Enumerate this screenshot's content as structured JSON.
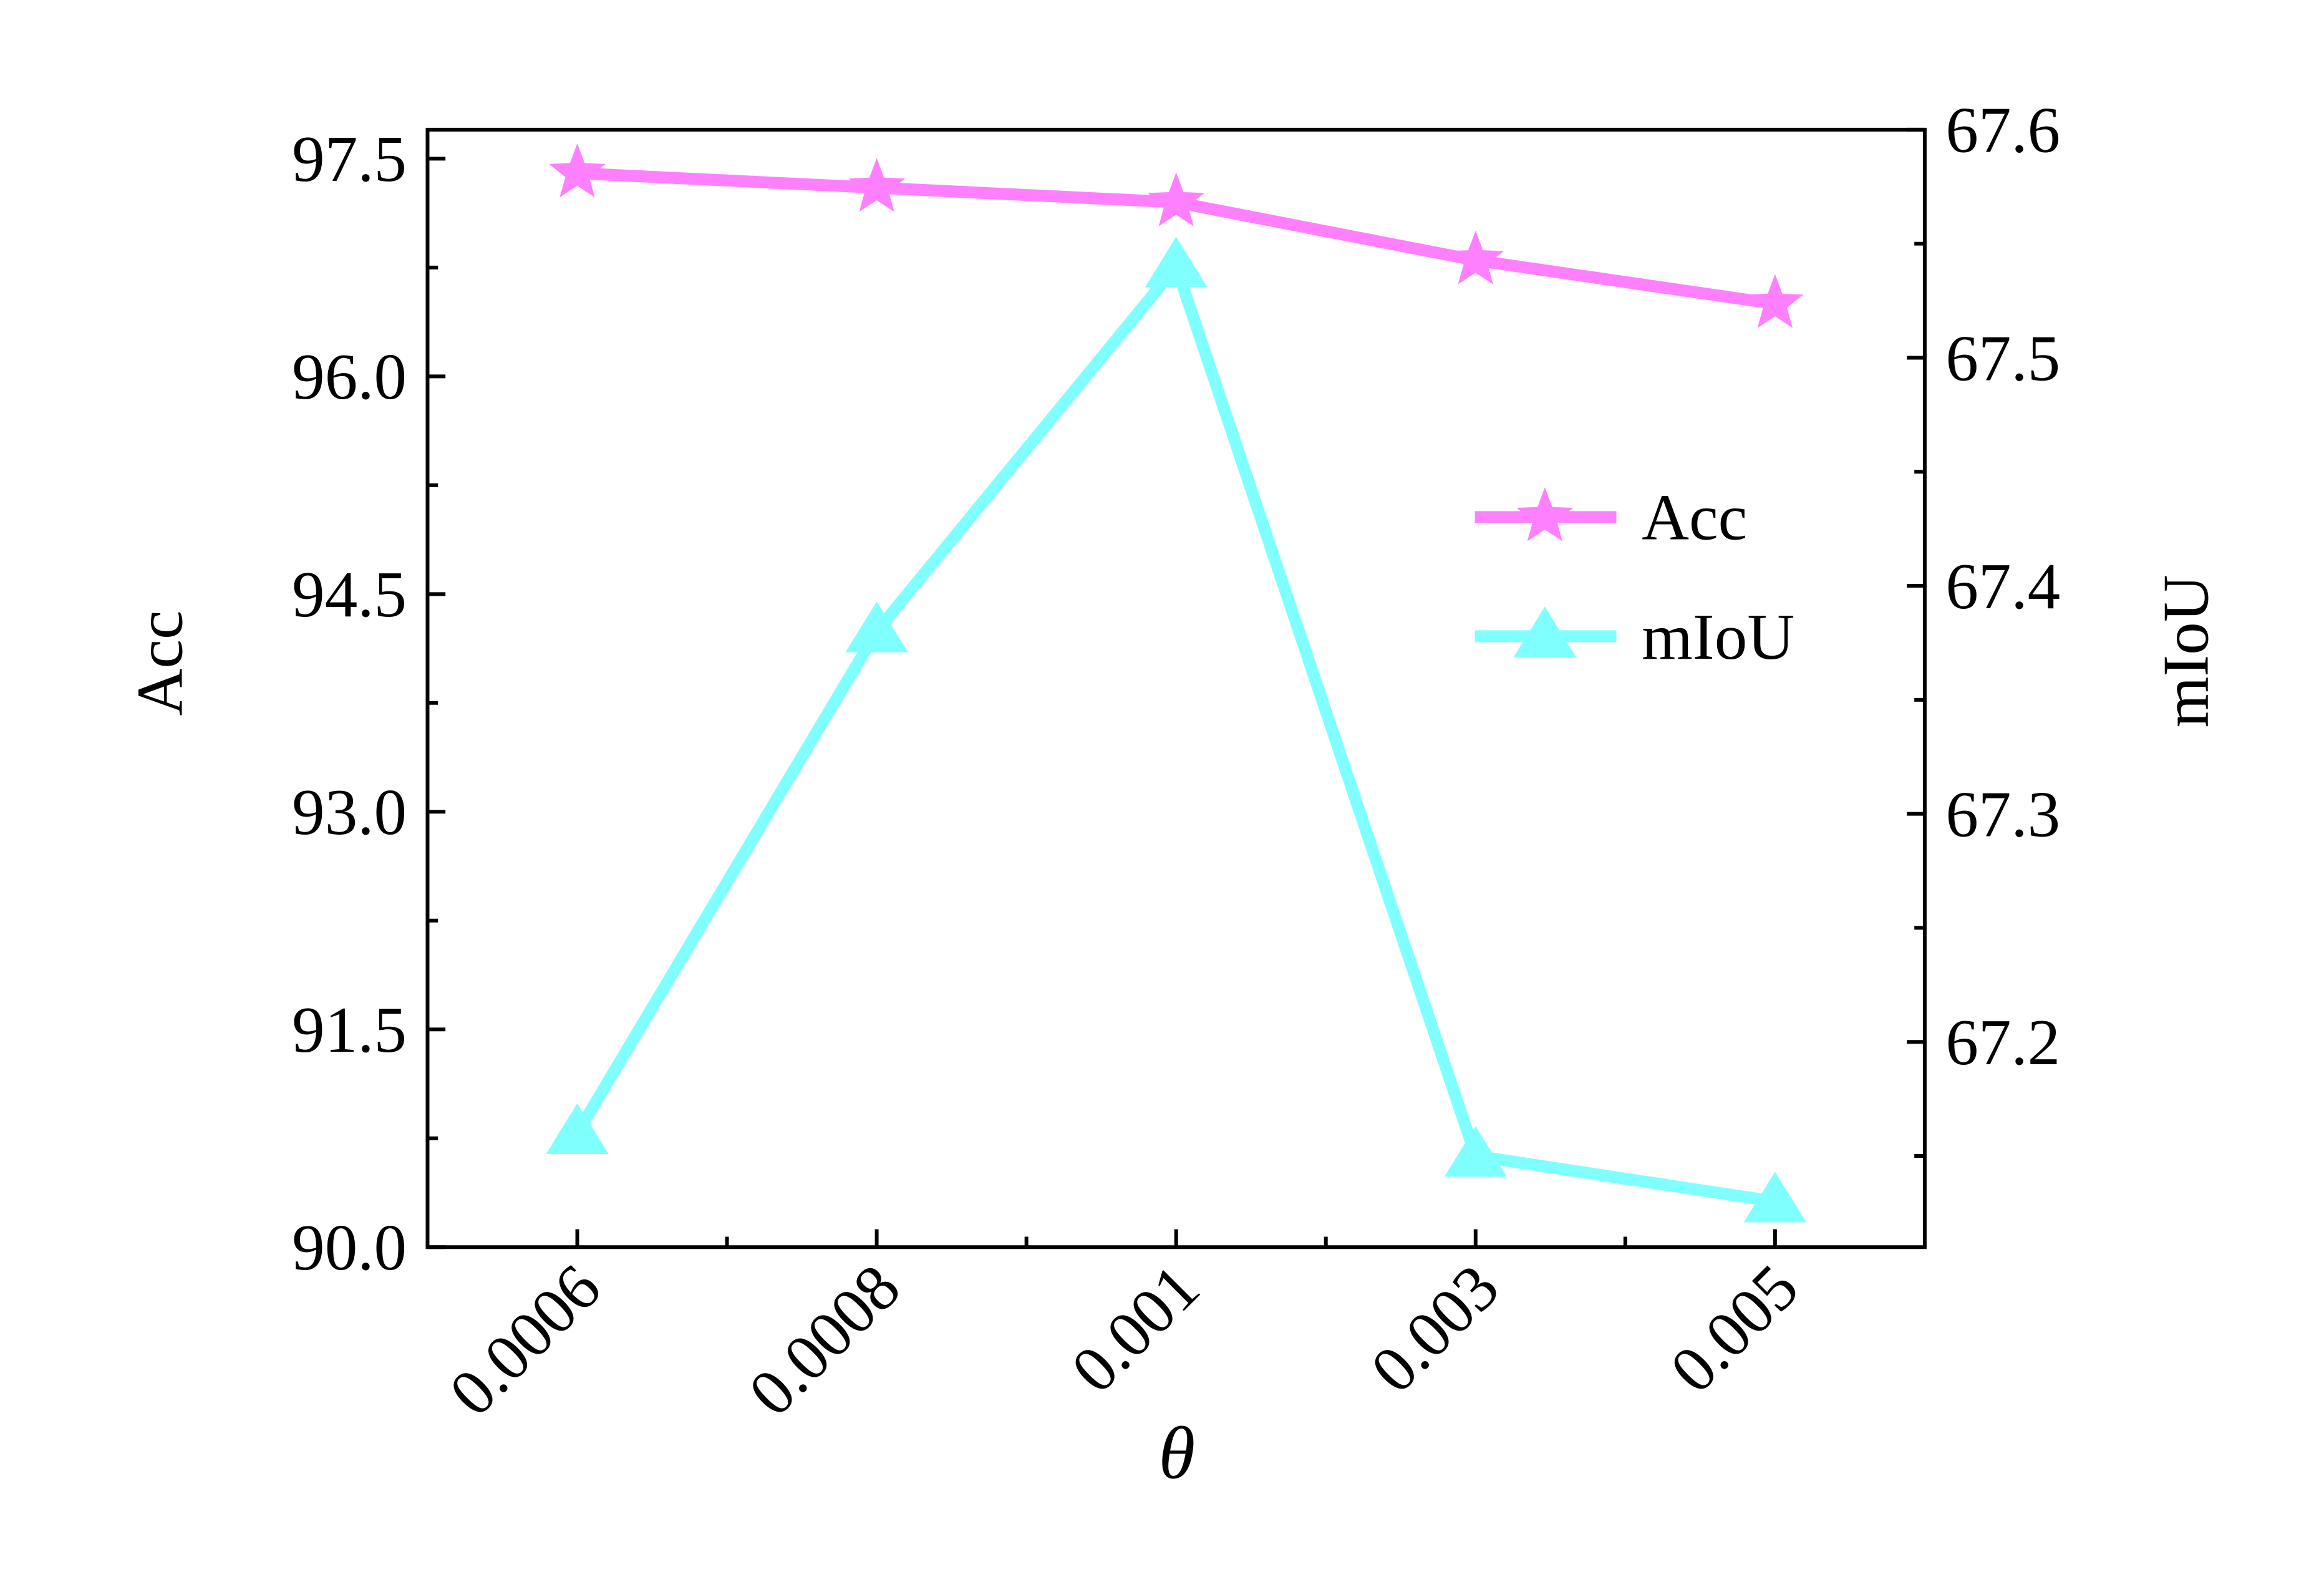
{
  "chart_data": {
    "type": "line",
    "x_label": "θ",
    "y_label": "Acc",
    "y2_label": "mIoU",
    "categories": [
      "0.0006",
      "0.0008",
      "0.001",
      "0.003",
      "0.005"
    ],
    "series": [
      {
        "name": "Acc",
        "color": "#ff80ff",
        "marker": "star",
        "values": [
          97.4,
          97.3,
          97.2,
          96.8,
          96.5
        ]
      },
      {
        "name": "mIoU",
        "color": "#80ffff",
        "marker": "triangle",
        "axis": "y2",
        "values": [
          67.16,
          67.38,
          67.54,
          67.15,
          67.13
        ]
      }
    ],
    "ylim": [
      90,
      97.7
    ],
    "yticks": [
      {
        "value": 90,
        "label": "90.0"
      },
      91.5,
      {
        "value": 93,
        "label": "93.0"
      },
      94.5,
      {
        "value": 96,
        "label": "96.0"
      },
      97.5
    ],
    "y2lim": [
      67.11,
      67.6
    ],
    "y2ticks": [
      67.2,
      67.3,
      67.4,
      67.5,
      67.6
    ],
    "legend": "center right",
    "grid": false
  }
}
